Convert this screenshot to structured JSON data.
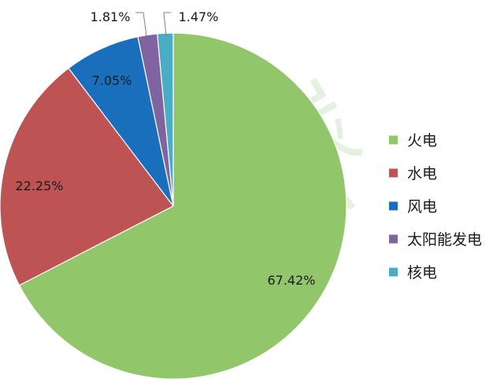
{
  "chart_data": {
    "type": "pie",
    "title": "",
    "slices": [
      {
        "label": "火电",
        "value": 67.42,
        "display": "67.42%",
        "color": "#92c66a"
      },
      {
        "label": "水电",
        "value": 22.25,
        "display": "22.25%",
        "color": "#bd5352"
      },
      {
        "label": "风电",
        "value": 7.05,
        "display": "7.05%",
        "color": "#1a6fbd"
      },
      {
        "label": "太阳能发电",
        "value": 1.81,
        "display": "1.81%",
        "color": "#8064a2"
      },
      {
        "label": "核电",
        "value": 1.47,
        "display": "1.47%",
        "color": "#4bacc6"
      }
    ],
    "legend_position": "right",
    "start_angle": "12 o'clock",
    "direction": "clockwise"
  },
  "watermark": {
    "title": "微碳",
    "subtitle": "CARBON",
    "color": "#cfe6c8"
  }
}
